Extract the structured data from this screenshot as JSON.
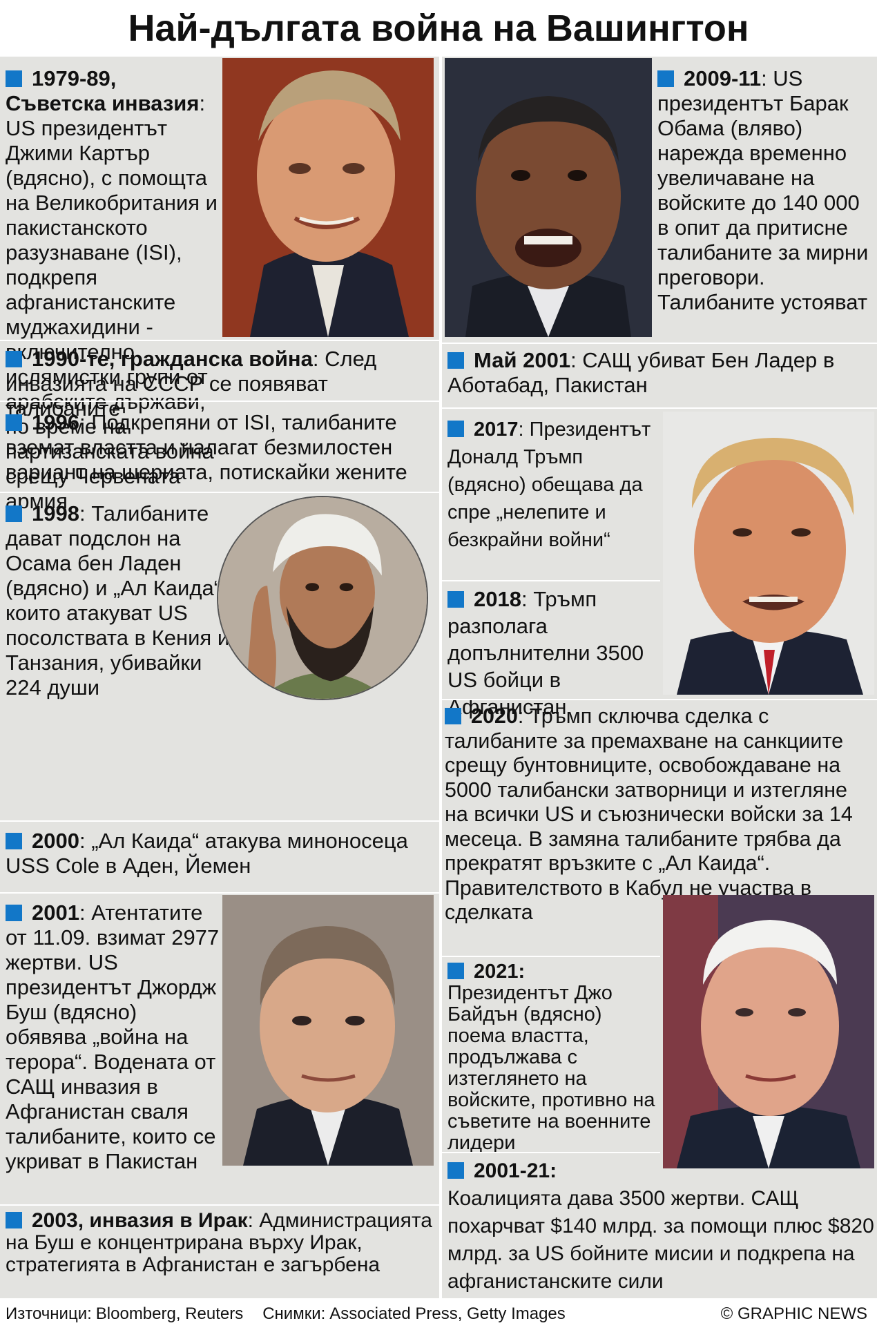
{
  "title": "Най-дългата война на Вашингтон",
  "left": {
    "e1979": {
      "date": "1979-89, Съветска инвазия",
      "text": ": US президентът Джими Картър (вдясно), с помощта на Великобритания и пакистанското разузнаване (ISI), подкрепя афганистанските муджахидини - включително ислямистки групи от арабските държави, по време на партизанската война срещу Червената армия"
    },
    "e1990": {
      "date": "1990-те, гражданска война",
      "text": ": След инвазията на СССР се появяват талибаните"
    },
    "e1996": {
      "date": "1996",
      "text": ": Подкрепяни от ISI, талибаните вземат властта и налагат безмилостен вариант на шериата, потискайки жените"
    },
    "e1998": {
      "date": "1998",
      "text": ": Талибаните дават подслон на Осама бен Ладен (вдясно) и „Ал Каида“, които атакуват US посолствата в Кения и Танзания, убивайки 224 души"
    },
    "e2000": {
      "date": "2000",
      "text": ": „Ал Каида“ атакува миноносеца USS Cole в Аден, Йемен"
    },
    "e2001": {
      "date": "2001",
      "text": ": Атентатите от 11.09. взимат 2977 жертви. US президентът Джордж Буш (вдясно) обявява „война на терора“. Водената от САЩ инвазия в Афганистан сваля талибаните, които се укриват в Пакистан"
    },
    "e2003": {
      "date": "2003, инвазия в Ирак",
      "text": ": Администрацията на Буш е концентрирана върху Ирак, стратегията в Афганистан е загърбена"
    }
  },
  "right": {
    "e2009": {
      "date": "2009-11",
      "text": ": US президентът Барак Обама (вляво) нарежда временно увеличаване на войските до 140 000 в опит да притисне талибаните за мирни преговори. Талибаните устояват"
    },
    "e2011": {
      "date": "Май 2001",
      "text": ": САЩ убиват Бен Ладер в Аботабад, Пакистан"
    },
    "e2017": {
      "date": "2017",
      "text": ": Президентът Доналд Тръмп (вдясно) обещава да спре „нелепите и безкрайни войни“"
    },
    "e2018": {
      "date": "2018",
      "text": ": Тръмп разполага допълнителни 3500 US бойци в Афганистан"
    },
    "e2020": {
      "date": "2020",
      "text": ": Тръмп сключва сделка с талибаните за премахване на санкциите срещу бунтовниците, освобождаване на 5000 талибански затворници и изтегляне на всички US и съюзнически войски за 14 месеца. В замяна талибаните трябва да прекратят връзките с „Ал Каида“. Правителството в Кабул не участва в сделката"
    },
    "e2021": {
      "date": "2021:",
      "text": "Президентът Джо Байдън (вдясно) поема властта, продължава с изтеглянето на войските, противно на съветите на военните лидери"
    },
    "e2001_21": {
      "date": "2001-21:",
      "text": "Коалицията дава 3500 жертви. САЩ похарчват $140 млрд. за помощи плюс $820 млрд. за US бойните мисии и подкрепа на афганистанските сили"
    }
  },
  "footer": {
    "sources_label": "Източници:",
    "sources": "Bloomberg, Reuters",
    "photos_label": "Снимки:",
    "photos": "Associated Press, Getty Images",
    "copyright": "© GRAPHIC NEWS"
  },
  "colors": {
    "accent": "#1277c8",
    "panel": "#e3e3e0"
  }
}
